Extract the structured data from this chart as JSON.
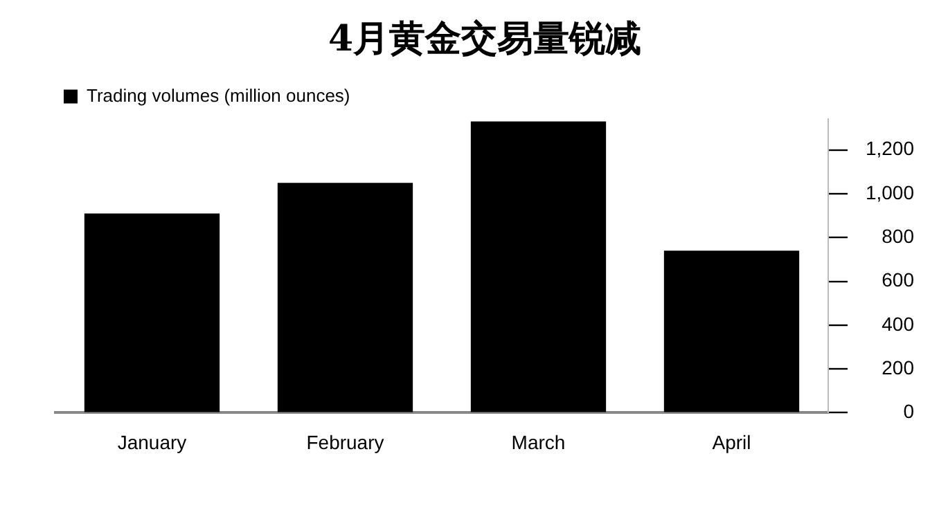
{
  "chart_data": {
    "type": "bar",
    "title": "4月黄金交易量锐减",
    "categories": [
      "January",
      "February",
      "March",
      "April"
    ],
    "series": [
      {
        "name": "Trading volumes (million ounces)",
        "color": "#000000",
        "values": [
          910,
          1050,
          1330,
          740
        ]
      }
    ],
    "ylim": [
      0,
      1340
    ],
    "yticks": [
      0,
      200,
      400,
      600,
      800,
      {
        "value": 1000,
        "label": "1,000"
      },
      {
        "value": 1200,
        "label": "1,200"
      }
    ],
    "legend": "top left",
    "grid": false
  }
}
